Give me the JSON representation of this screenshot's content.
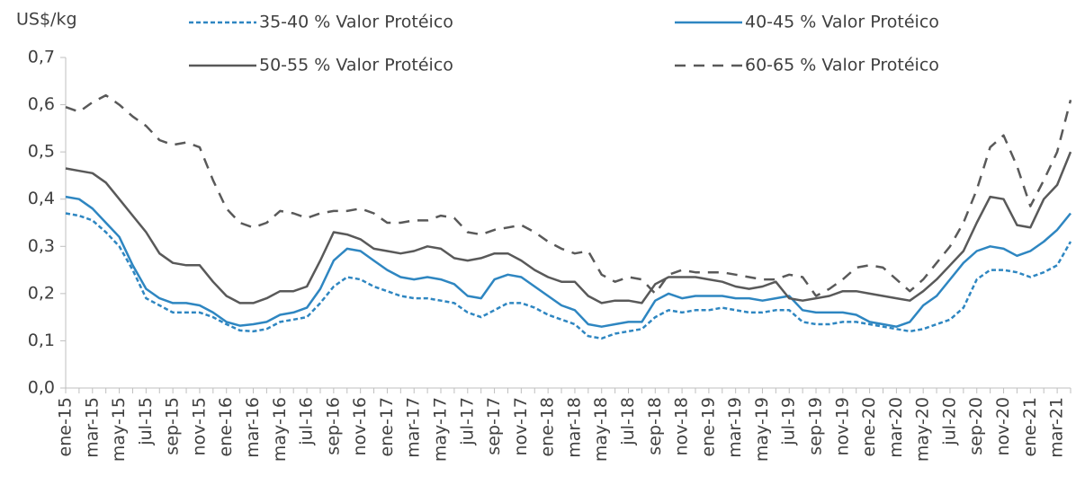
{
  "chart_data": {
    "type": "line",
    "y_label": "US$/kg",
    "categories": [
      "ene-15",
      null,
      "mar-15",
      null,
      "may-15",
      null,
      "jul-15",
      null,
      "sep-15",
      null,
      "nov-15",
      null,
      "ene-16",
      null,
      "mar-16",
      null,
      "may-16",
      null,
      "jul-16",
      null,
      "sep-16",
      null,
      "nov-16",
      null,
      "ene-17",
      null,
      "mar-17",
      null,
      "may-17",
      null,
      "jul-17",
      null,
      "sep-17",
      null,
      "nov-17",
      null,
      "ene-18",
      null,
      "mar-18",
      null,
      "may-18",
      null,
      "jul-18",
      null,
      "sep-18",
      null,
      "nov-18",
      null,
      "ene-19",
      null,
      "mar-19",
      null,
      "may-19",
      null,
      "jul-19",
      null,
      "sep-19",
      null,
      "nov-19",
      null,
      "ene-20",
      null,
      "mar-20",
      null,
      "may-20",
      null,
      "jul-20",
      null,
      "sep-20",
      null,
      "nov-20",
      null,
      "ene-21",
      null,
      "mar-21",
      null
    ],
    "series": [
      {
        "name": "35-40 % Valor Protéico",
        "color": "#2e86c1",
        "dash": "dotted",
        "values": [
          0.37,
          0.365,
          0.355,
          0.33,
          0.3,
          0.25,
          0.19,
          0.175,
          0.16,
          0.16,
          0.16,
          0.15,
          0.135,
          0.122,
          0.12,
          0.125,
          0.14,
          0.145,
          0.15,
          0.18,
          0.215,
          0.235,
          0.23,
          0.215,
          0.205,
          0.195,
          0.19,
          0.19,
          0.185,
          0.18,
          0.16,
          0.15,
          0.165,
          0.18,
          0.18,
          0.17,
          0.155,
          0.145,
          0.135,
          0.11,
          0.105,
          0.115,
          0.12,
          0.125,
          0.15,
          0.165,
          0.16,
          0.165,
          0.165,
          0.17,
          0.165,
          0.16,
          0.16,
          0.165,
          0.165,
          0.14,
          0.135,
          0.135,
          0.14,
          0.14,
          0.135,
          0.13,
          0.125,
          0.12,
          0.125,
          0.135,
          0.145,
          0.17,
          0.23,
          0.25,
          0.25,
          0.245,
          0.235,
          0.245,
          0.26,
          0.31
        ]
      },
      {
        "name": "40-45 % Valor Protéico",
        "color": "#2e86c1",
        "dash": "solid",
        "values": [
          0.405,
          0.4,
          0.38,
          0.35,
          0.32,
          0.26,
          0.21,
          0.19,
          0.18,
          0.18,
          0.175,
          0.16,
          0.14,
          0.132,
          0.135,
          0.14,
          0.155,
          0.16,
          0.17,
          0.21,
          0.27,
          0.295,
          0.29,
          0.27,
          0.25,
          0.235,
          0.23,
          0.235,
          0.23,
          0.22,
          0.195,
          0.19,
          0.23,
          0.24,
          0.235,
          0.215,
          0.195,
          0.175,
          0.165,
          0.135,
          0.13,
          0.135,
          0.14,
          0.14,
          0.185,
          0.2,
          0.19,
          0.195,
          0.195,
          0.195,
          0.19,
          0.19,
          0.185,
          0.19,
          0.195,
          0.165,
          0.16,
          0.16,
          0.16,
          0.155,
          0.14,
          0.135,
          0.13,
          0.14,
          0.175,
          0.195,
          0.23,
          0.265,
          0.29,
          0.3,
          0.295,
          0.28,
          0.29,
          0.31,
          0.335,
          0.37
        ]
      },
      {
        "name": "50-55 % Valor Protéico",
        "color": "#595959",
        "dash": "solid",
        "values": [
          0.465,
          0.46,
          0.455,
          0.435,
          0.4,
          0.365,
          0.33,
          0.285,
          0.265,
          0.26,
          0.26,
          0.225,
          0.195,
          0.18,
          0.18,
          0.19,
          0.205,
          0.205,
          0.215,
          0.27,
          0.33,
          0.325,
          0.315,
          0.295,
          0.29,
          0.285,
          0.29,
          0.3,
          0.295,
          0.275,
          0.27,
          0.275,
          0.285,
          0.285,
          0.27,
          0.25,
          0.235,
          0.225,
          0.225,
          0.195,
          0.18,
          0.185,
          0.185,
          0.18,
          0.22,
          0.235,
          0.235,
          0.235,
          0.23,
          0.225,
          0.215,
          0.21,
          0.215,
          0.225,
          0.19,
          0.185,
          0.19,
          0.195,
          0.205,
          0.205,
          0.2,
          0.195,
          0.19,
          0.185,
          0.205,
          0.23,
          0.26,
          0.29,
          0.35,
          0.405,
          0.4,
          0.345,
          0.34,
          0.4,
          0.43,
          0.5
        ]
      },
      {
        "name": "60-65 % Valor Protéico",
        "color": "#595959",
        "dash": "dashed",
        "values": [
          0.595,
          0.585,
          0.605,
          0.62,
          0.6,
          0.575,
          0.555,
          0.525,
          0.515,
          0.52,
          0.51,
          0.44,
          0.38,
          0.35,
          0.34,
          0.35,
          0.375,
          0.37,
          0.36,
          0.37,
          0.375,
          0.375,
          0.38,
          0.37,
          0.35,
          0.35,
          0.355,
          0.355,
          0.365,
          0.36,
          0.33,
          0.325,
          0.335,
          0.34,
          0.345,
          0.33,
          0.31,
          0.295,
          0.285,
          0.29,
          0.24,
          0.225,
          0.235,
          0.23,
          0.2,
          0.24,
          0.25,
          0.245,
          0.245,
          0.245,
          0.24,
          0.235,
          0.23,
          0.23,
          0.24,
          0.235,
          0.195,
          0.21,
          0.23,
          0.255,
          0.26,
          0.255,
          0.23,
          0.205,
          0.23,
          0.265,
          0.3,
          0.35,
          0.42,
          0.51,
          0.535,
          0.47,
          0.385,
          0.44,
          0.5,
          0.61
        ]
      }
    ],
    "ylim": [
      0,
      0.7
    ],
    "yticks": [
      {
        "value": 0,
        "label": "0,0"
      },
      {
        "value": 0.1,
        "label": "0,1"
      },
      {
        "value": 0.2,
        "label": "0,2"
      },
      {
        "value": 0.3,
        "label": "0,3"
      },
      {
        "value": 0.4,
        "label": "0,4"
      },
      {
        "value": 0.5,
        "label": "0,5"
      },
      {
        "value": 0.6,
        "label": "0,6"
      },
      {
        "value": 0.7,
        "label": "0,7"
      }
    ],
    "grid": false,
    "legend": "top"
  }
}
